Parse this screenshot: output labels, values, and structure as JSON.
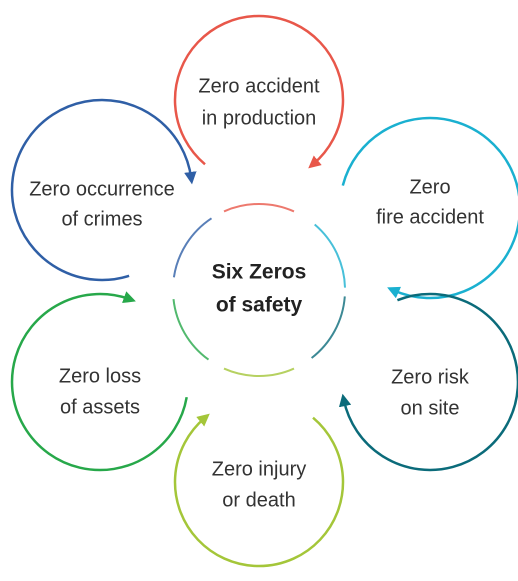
{
  "center": {
    "lines": [
      "Six Zeros",
      "of safety"
    ]
  },
  "nodes": [
    {
      "lines": [
        "Zero accident",
        "in production"
      ]
    },
    {
      "lines": [
        "Zero",
        "fire accident"
      ]
    },
    {
      "lines": [
        "Zero risk",
        "on site"
      ]
    },
    {
      "lines": [
        "Zero injury",
        "or death"
      ]
    },
    {
      "lines": [
        "Zero loss",
        "of assets"
      ]
    },
    {
      "lines": [
        "Zero occurrence",
        "of crimes"
      ]
    }
  ]
}
